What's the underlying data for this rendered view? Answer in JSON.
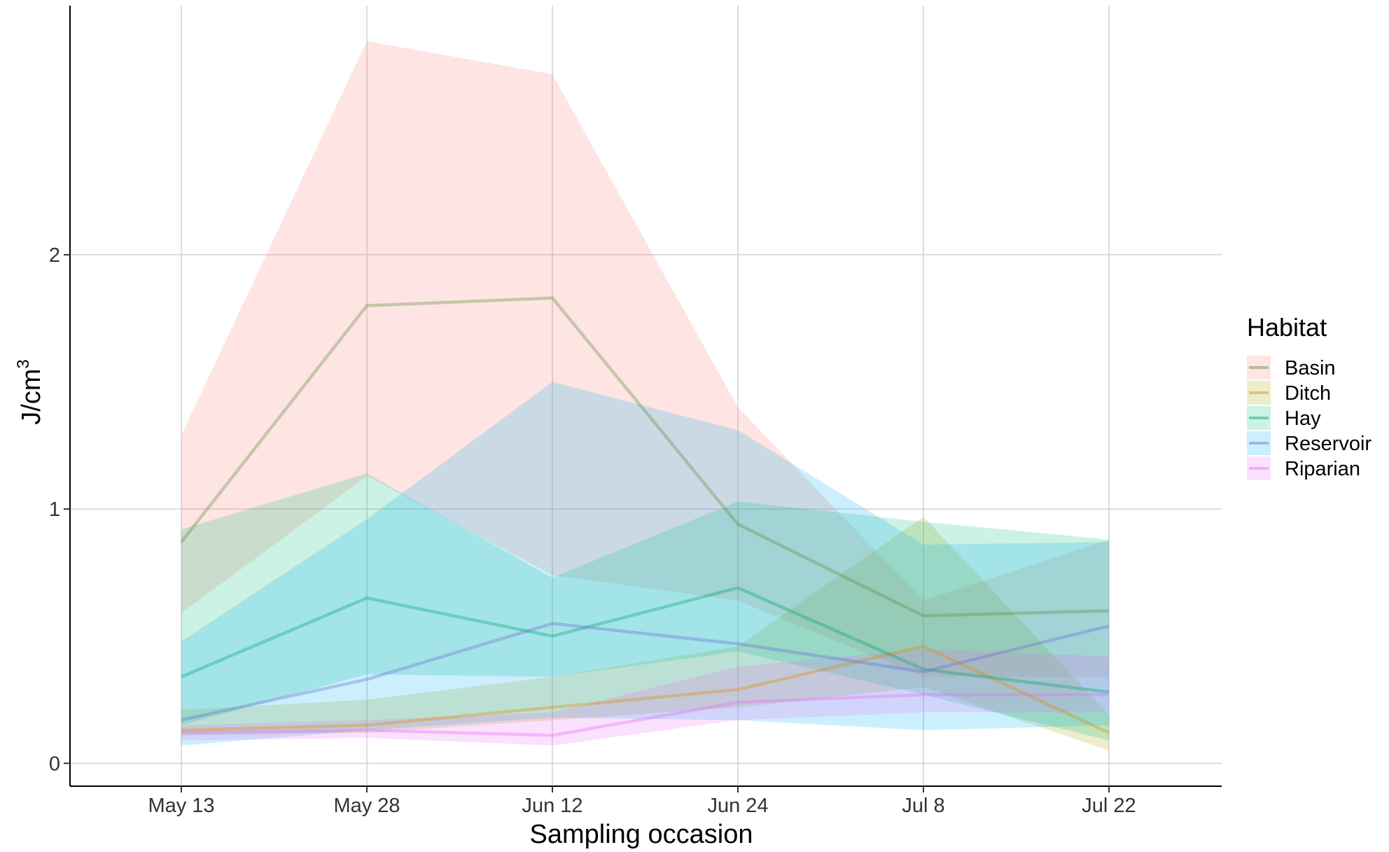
{
  "chart_data": {
    "type": "line",
    "title": "",
    "xlabel": "Sampling occasion",
    "ylabel_main": "J",
    "ylabel_unit": "cm",
    "ylabel_exponent": "3",
    "categories": [
      "May 13",
      "May 28",
      "Jun 12",
      "Jun 24",
      "Jul 8",
      "Jul 22"
    ],
    "yticks": [
      0,
      1,
      2
    ],
    "ytick_labels": [
      "0",
      "1",
      "2"
    ],
    "ylim": [
      -0.09,
      2.98
    ],
    "grid": true,
    "legend": {
      "title": "Habitat",
      "position": "right"
    },
    "band_opacity": 0.2,
    "line_opacity": 0.35,
    "series": [
      {
        "name": "Basin",
        "line_color": "#5b8f3e",
        "fill_color": "#f8766d",
        "values": [
          0.87,
          1.8,
          1.83,
          0.94,
          0.58,
          0.6
        ],
        "lower": [
          0.59,
          1.13,
          0.74,
          0.64,
          0.34,
          0.34
        ],
        "upper": [
          1.29,
          2.84,
          2.71,
          1.4,
          0.64,
          0.88
        ]
      },
      {
        "name": "Ditch",
        "line_color": "#e08b00",
        "fill_color": "#a3a500",
        "values": [
          0.13,
          0.15,
          0.22,
          0.29,
          0.46,
          0.12
        ],
        "lower": [
          0.11,
          0.12,
          0.17,
          0.22,
          0.3,
          0.05
        ],
        "upper": [
          0.21,
          0.25,
          0.34,
          0.46,
          0.97,
          0.19
        ]
      },
      {
        "name": "Hay",
        "line_color": "#00a56b",
        "fill_color": "#00bf7d",
        "values": [
          0.34,
          0.65,
          0.5,
          0.69,
          0.37,
          0.28
        ],
        "lower": [
          0.15,
          0.35,
          0.34,
          0.44,
          0.27,
          0.09
        ],
        "upper": [
          0.92,
          1.14,
          0.73,
          1.03,
          0.95,
          0.88
        ]
      },
      {
        "name": "Reservoir",
        "line_color": "#6b6bd8",
        "fill_color": "#00b0f6",
        "values": [
          0.17,
          0.33,
          0.55,
          0.47,
          0.36,
          0.54
        ],
        "lower": [
          0.07,
          0.13,
          0.18,
          0.17,
          0.13,
          0.15
        ],
        "upper": [
          0.48,
          0.96,
          1.5,
          1.31,
          0.86,
          0.87
        ]
      },
      {
        "name": "Riparian",
        "line_color": "#e76bf3",
        "fill_color": "#e76bf3",
        "values": [
          0.12,
          0.13,
          0.11,
          0.24,
          0.27,
          0.27
        ],
        "lower": [
          0.09,
          0.1,
          0.07,
          0.17,
          0.2,
          0.2
        ],
        "upper": [
          0.15,
          0.17,
          0.2,
          0.38,
          0.45,
          0.42
        ]
      }
    ]
  }
}
